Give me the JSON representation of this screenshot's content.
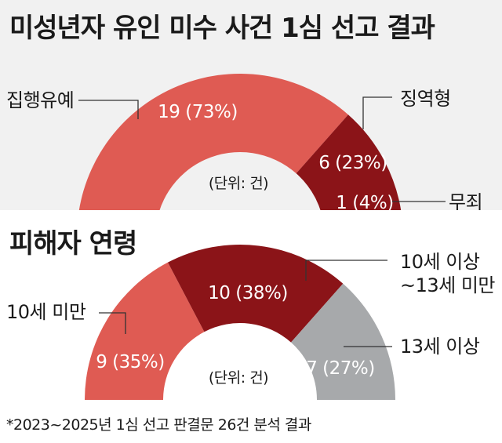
{
  "colors": {
    "coral": "#df5b53",
    "dark_red": "#8b1418",
    "gray": "#a7a9ab",
    "panel_bg": "#f1f1f1"
  },
  "chart_data": [
    {
      "type": "pie",
      "title": "미성년자 유인 미수 사건 1심 선고 결과",
      "unit_note": "(단위: 건)",
      "series": [
        {
          "name": "집행유예",
          "value": 19,
          "percent": 73,
          "label": "19 (73%)",
          "color": "#df5b53"
        },
        {
          "name": "징역형",
          "value": 6,
          "percent": 23,
          "label": "6 (23%)",
          "color": "#8b1418"
        },
        {
          "name": "무죄",
          "value": 1,
          "percent": 4,
          "label": "1 (4%)",
          "color": "#a7a9ab"
        }
      ]
    },
    {
      "type": "pie",
      "title": "피해자 연령",
      "unit_note": "(단위: 건)",
      "series": [
        {
          "name": "10세 미만",
          "value": 9,
          "percent": 35,
          "label": "9 (35%)",
          "color": "#df5b53"
        },
        {
          "name": "10세 이상\n~13세 미만",
          "value": 10,
          "percent": 38,
          "label": "10 (38%)",
          "color": "#8b1418"
        },
        {
          "name": "13세 이상",
          "value": 7,
          "percent": 27,
          "label": "7 (27%)",
          "color": "#a7a9ab"
        }
      ]
    }
  ],
  "footnote": "*2023~2025년 1심 선고 판결문 26건 분석 결과"
}
